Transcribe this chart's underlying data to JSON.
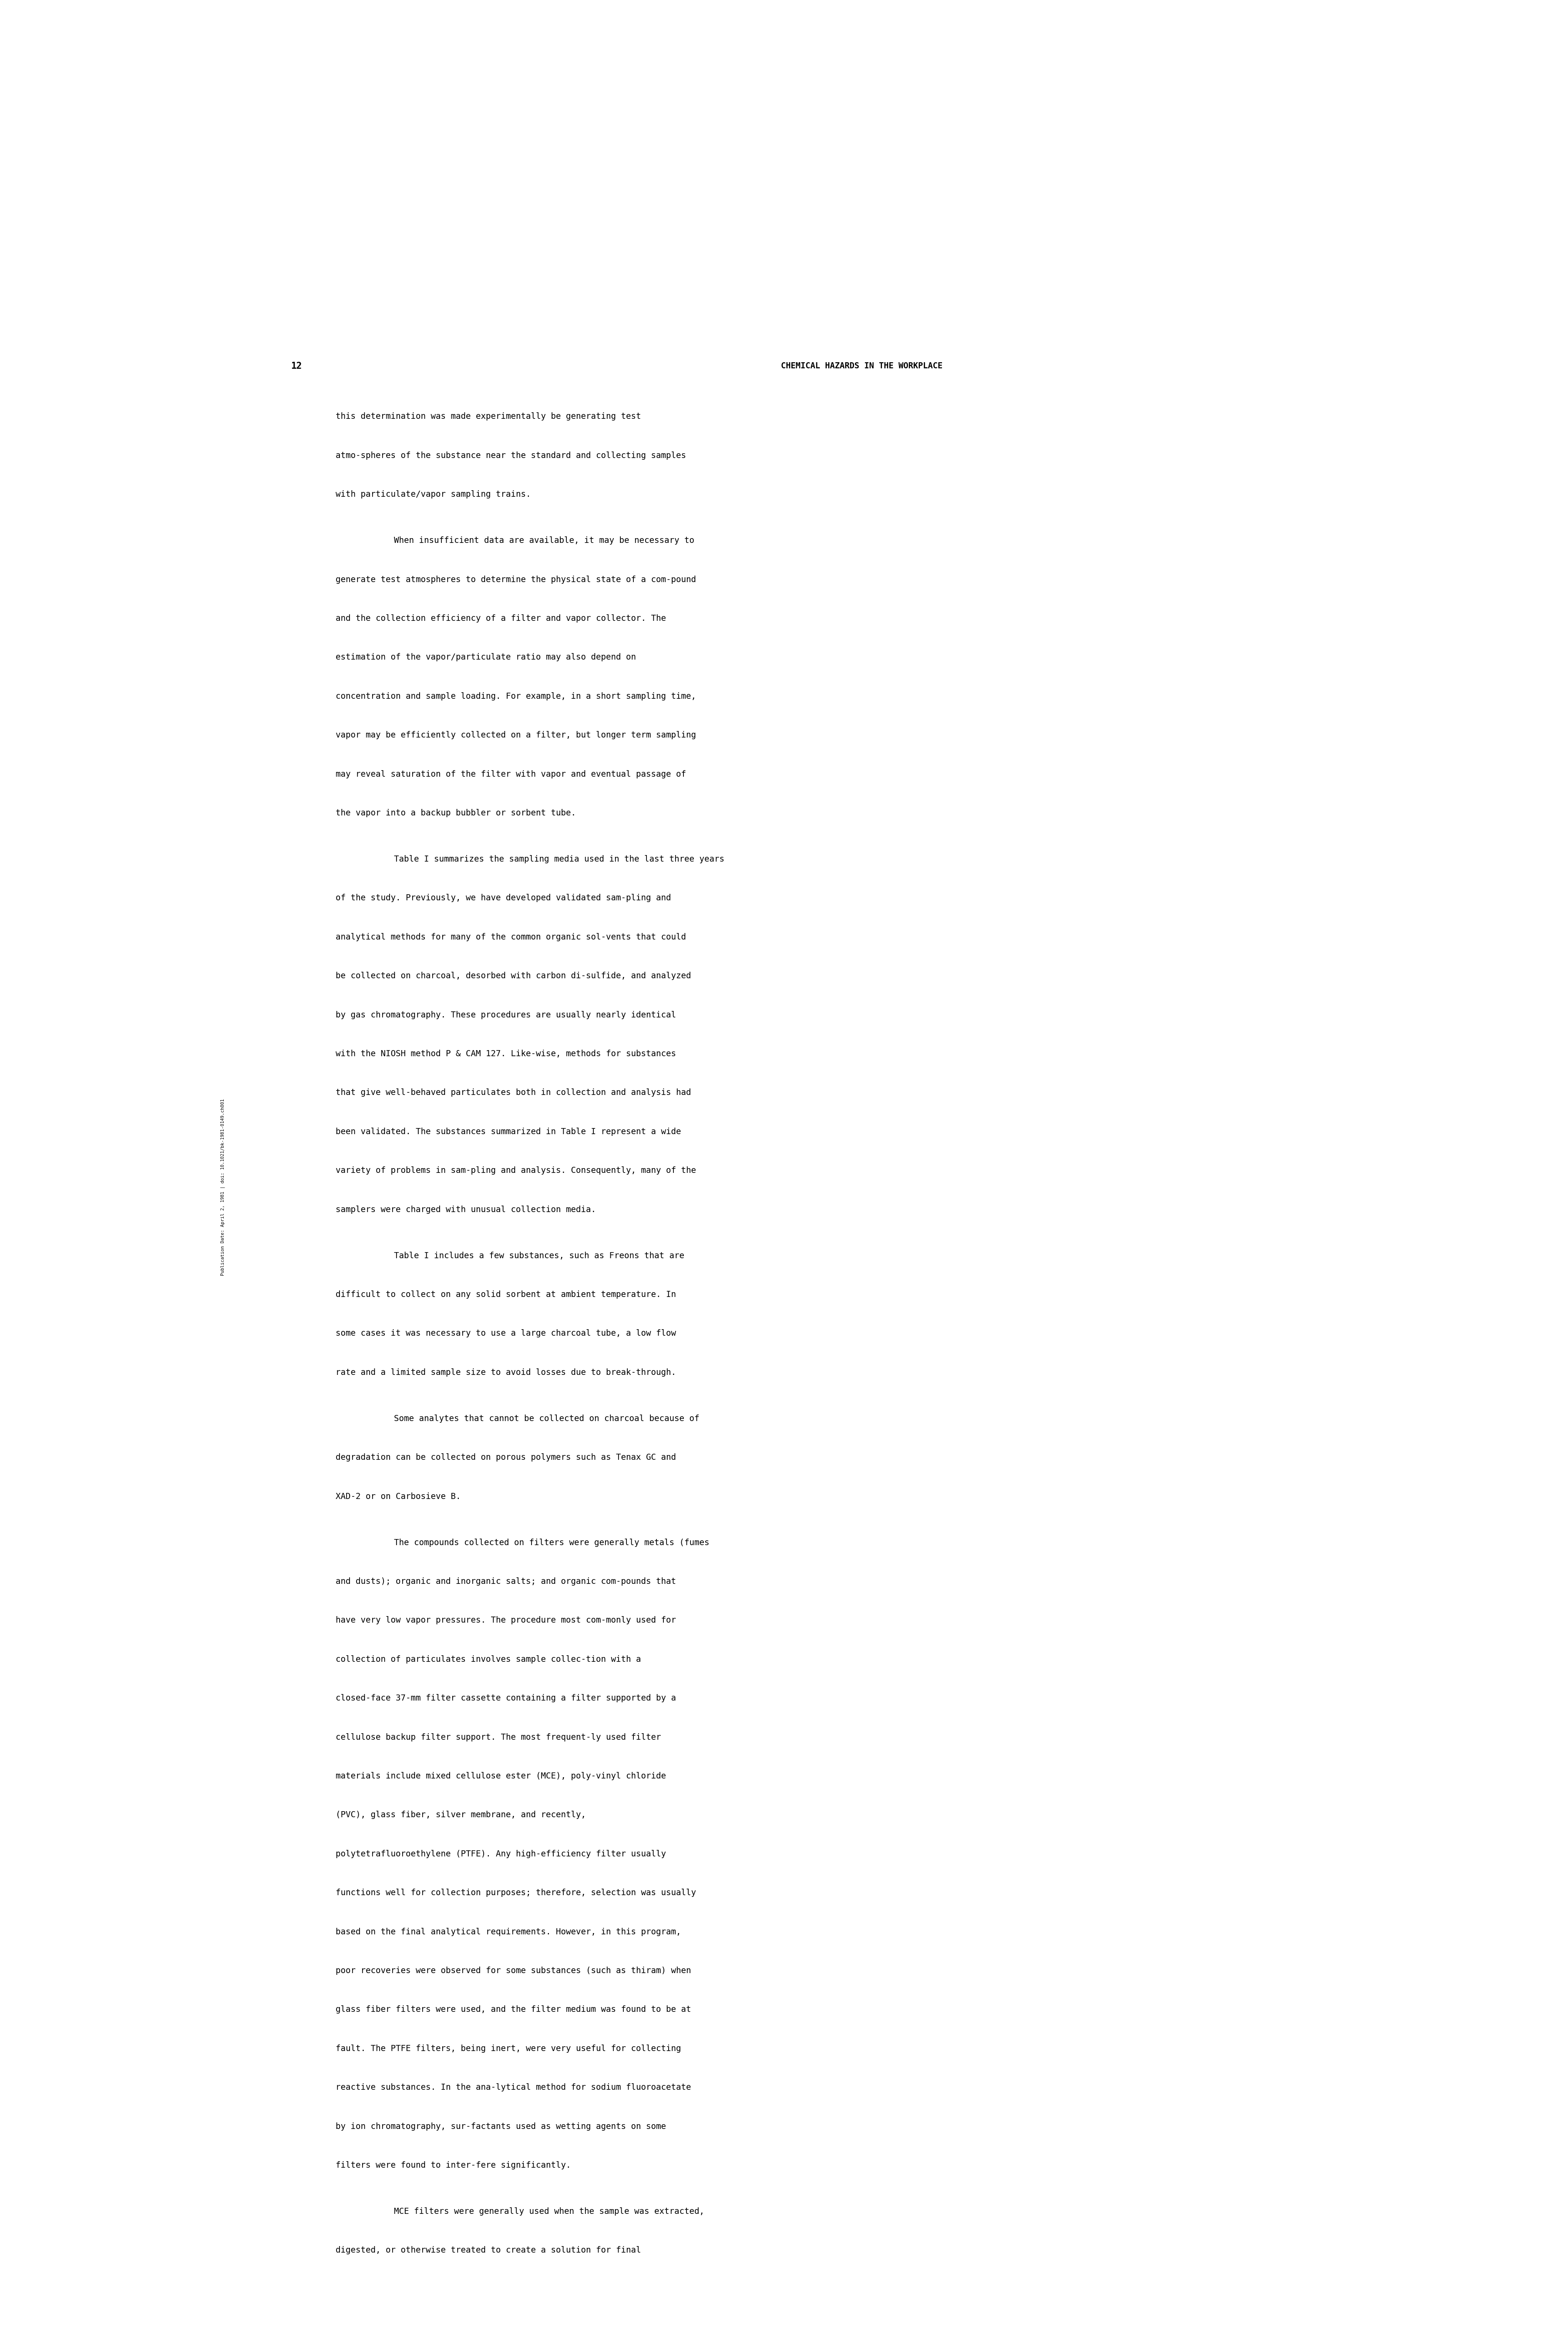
{
  "page_number": "12",
  "header": "CHEMICAL HAZARDS IN THE WORKPLACE",
  "background_color": "#ffffff",
  "text_color": "#000000",
  "sidebar_text": "Publication Date: April 2, 1981 | doi: 10.1021/bk-1981-0149.ch001",
  "paragraphs": [
    {
      "indent": false,
      "text": "this determination was made experimentally be generating test atmo-spheres of the substance near the standard and collecting samples with particulate/vapor sampling trains."
    },
    {
      "indent": true,
      "text": "When insufficient data are available, it may be necessary to generate test atmospheres to determine the physical state of a com-pound and the collection efficiency of a filter and vapor collector. The estimation of the vapor/particulate ratio may also depend on concentration and sample loading.  For example, in a short sampling time, vapor may be efficiently collected on a filter, but longer term sampling may reveal saturation of the filter with vapor and eventual passage of the vapor into a backup bubbler or sorbent tube."
    },
    {
      "indent": true,
      "text": "Table I summarizes the sampling media used in the last three years of the study.  Previously, we have developed validated sam-pling and analytical methods for many of the common organic sol-vents that could be collected on charcoal, desorbed with carbon di-sulfide, and analyzed by gas chromatography.  These procedures are usually nearly identical with the NIOSH method P & CAM 127.  Like-wise, methods for substances that give well-behaved particulates both in collection and analysis had been validated.  The substances summarized in Table I represent a wide variety of problems in sam-pling and analysis.  Consequently, many of the samplers were charged with unusual collection media."
    },
    {
      "indent": true,
      "text": "Table I includes a few substances, such as Freons that are difficult to collect on any solid sorbent at ambient temperature. In some cases it was necessary to use a large charcoal tube, a low flow rate and a limited sample size to avoid losses due to break-through."
    },
    {
      "indent": true,
      "text": "Some analytes that cannot be collected on charcoal because of degradation can be collected on porous polymers such as Tenax GC and XAD-2 or on Carbosieve B."
    },
    {
      "indent": true,
      "text": "The compounds collected on filters were generally metals (fumes and dusts); organic and inorganic salts; and organic com-pounds that have very low vapor pressures.  The procedure most com-monly used for collection of particulates involves sample collec-tion with a closed-face 37-mm filter cassette containing a filter supported by a cellulose backup filter support.  The most frequent-ly used filter materials include mixed cellulose ester (MCE), poly-vinyl chloride (PVC), glass fiber, silver membrane, and recently, polytetrafluoroethylene (PTFE).  Any high-efficiency filter usually functions well for collection purposes; therefore, selection was usually based on the final analytical requirements.  However, in this program, poor recoveries were observed for some substances (such as thiram) when glass fiber filters were used, and the filter medium was found to be at fault.  The PTFE filters, being inert, were very useful for collecting reactive substances.  In the ana-lytical method for sodium fluoroacetate by ion chromatography, sur-factants used as wetting agents on some filters were found to inter-fere significantly."
    },
    {
      "indent": true,
      "text": "MCE filters were generally used when the sample was extracted, digested, or otherwise treated to create a solution for final"
    }
  ]
}
